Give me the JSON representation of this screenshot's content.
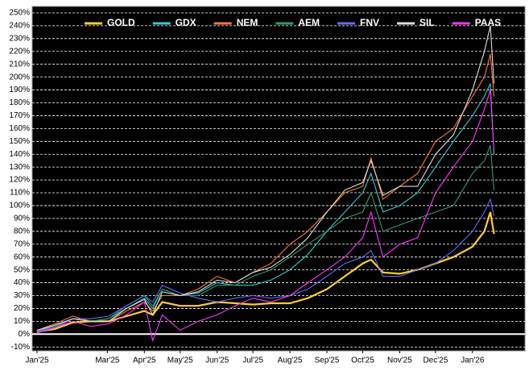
{
  "chart_data": {
    "type": "line",
    "legend": "top",
    "grid": true,
    "x": [
      0,
      15,
      30,
      45,
      60,
      75,
      90,
      97,
      105,
      120,
      135,
      151,
      166,
      181,
      196,
      212,
      227,
      243,
      258,
      273,
      280,
      290,
      304,
      319,
      334,
      349,
      365,
      375,
      380,
      383
    ],
    "xlim": [
      -4,
      409
    ],
    "xticks": [
      {
        "value": 0,
        "label": "Jan'25"
      },
      {
        "value": 59,
        "label": "Mar'25"
      },
      {
        "value": 90,
        "label": "Apr'25"
      },
      {
        "value": 120,
        "label": "May'25"
      },
      {
        "value": 151,
        "label": "Jun'25"
      },
      {
        "value": 181,
        "label": "Jul'25"
      },
      {
        "value": 212,
        "label": "Aug'25"
      },
      {
        "value": 243,
        "label": "Sep'25"
      },
      {
        "value": 273,
        "label": "Oct'25"
      },
      {
        "value": 304,
        "label": "Nov'25"
      },
      {
        "value": 334,
        "label": "Dec'25"
      },
      {
        "value": 365,
        "label": "Jan'26"
      }
    ],
    "ylim": [
      -13,
      255
    ],
    "yticks": [
      {
        "value": -10,
        "label": "-10%"
      },
      {
        "value": 0,
        "label": "0%"
      },
      {
        "value": 10,
        "label": "10%"
      },
      {
        "value": 20,
        "label": "20%"
      },
      {
        "value": 30,
        "label": "30%"
      },
      {
        "value": 40,
        "label": "40%"
      },
      {
        "value": 50,
        "label": "50%"
      },
      {
        "value": 60,
        "label": "60%"
      },
      {
        "value": 70,
        "label": "70%"
      },
      {
        "value": 80,
        "label": "80%"
      },
      {
        "value": 90,
        "label": "90%"
      },
      {
        "value": 100,
        "label": "100%"
      },
      {
        "value": 110,
        "label": "110%"
      },
      {
        "value": 120,
        "label": "120%"
      },
      {
        "value": 130,
        "label": "130%"
      },
      {
        "value": 140,
        "label": "140%"
      },
      {
        "value": 150,
        "label": "150%"
      },
      {
        "value": 160,
        "label": "160%"
      },
      {
        "value": 170,
        "label": "170%"
      },
      {
        "value": 180,
        "label": "180%"
      },
      {
        "value": 190,
        "label": "190%"
      },
      {
        "value": 200,
        "label": "200%"
      },
      {
        "value": 210,
        "label": "210%"
      },
      {
        "value": 220,
        "label": "220%"
      },
      {
        "value": 230,
        "label": "230%"
      },
      {
        "value": 240,
        "label": "240%"
      },
      {
        "value": 250,
        "label": "250%"
      }
    ],
    "series": [
      {
        "name": "GOLD",
        "color": "#ffcc33",
        "values": [
          2,
          4,
          9,
          10,
          10,
          14,
          18,
          15,
          25,
          22,
          22,
          25,
          24,
          23,
          24,
          24,
          28,
          35,
          45,
          55,
          58,
          48,
          47,
          50,
          55,
          60,
          68,
          80,
          95,
          78
        ]
      },
      {
        "name": "GDX",
        "color": "#33cccc",
        "values": [
          2,
          7,
          12,
          10,
          12,
          20,
          28,
          20,
          35,
          30,
          32,
          40,
          38,
          38,
          42,
          50,
          62,
          80,
          95,
          110,
          125,
          95,
          100,
          110,
          130,
          150,
          170,
          185,
          195,
          140
        ]
      },
      {
        "name": "NEM",
        "color": "#ff7733",
        "values": [
          3,
          8,
          14,
          10,
          10,
          18,
          25,
          18,
          30,
          30,
          35,
          45,
          40,
          48,
          55,
          70,
          80,
          95,
          110,
          115,
          137,
          105,
          115,
          125,
          150,
          160,
          185,
          200,
          218,
          185
        ]
      },
      {
        "name": "AEM",
        "color": "#339966",
        "values": [
          2,
          6,
          12,
          10,
          12,
          22,
          30,
          22,
          35,
          30,
          30,
          38,
          38,
          45,
          50,
          60,
          70,
          80,
          90,
          95,
          110,
          80,
          85,
          90,
          95,
          100,
          125,
          135,
          147,
          112
        ]
      },
      {
        "name": "FNV",
        "color": "#6666ff",
        "values": [
          2,
          5,
          12,
          12,
          14,
          22,
          30,
          25,
          38,
          32,
          28,
          25,
          28,
          30,
          28,
          30,
          35,
          45,
          55,
          60,
          65,
          45,
          45,
          50,
          55,
          65,
          80,
          95,
          105,
          92
        ]
      },
      {
        "name": "SIL",
        "color": "#dddddd",
        "values": [
          3,
          7,
          12,
          10,
          10,
          20,
          27,
          15,
          33,
          30,
          33,
          42,
          40,
          48,
          52,
          62,
          75,
          95,
          112,
          118,
          135,
          108,
          115,
          115,
          140,
          155,
          190,
          220,
          240,
          195
        ]
      },
      {
        "name": "PAAS",
        "color": "#ff33ff",
        "values": [
          1,
          5,
          10,
          6,
          8,
          15,
          25,
          -5,
          15,
          3,
          10,
          15,
          22,
          28,
          25,
          30,
          40,
          50,
          60,
          75,
          95,
          60,
          70,
          75,
          110,
          130,
          150,
          175,
          190,
          142
        ]
      }
    ]
  }
}
